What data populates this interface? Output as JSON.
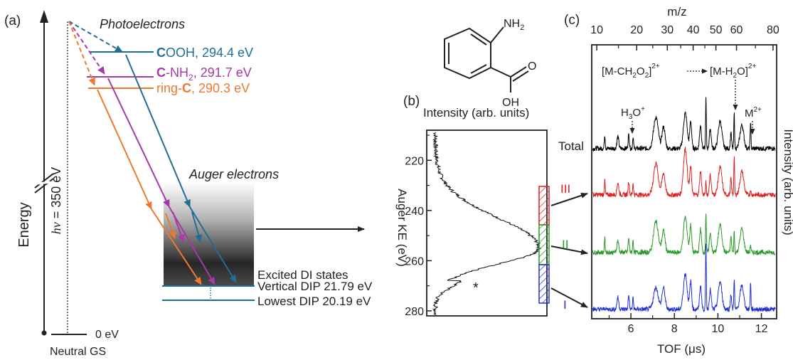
{
  "panel_a": {
    "label": "(a)",
    "energy_label": "Energy",
    "photon_label_italic": "hν",
    "photon_label_rest": " = 350 eV",
    "photoelectrons_label": "Photoelectrons",
    "auger_label": "Auger electrons",
    "ground_energy": "0 eV",
    "ground_label": "Neutral GS",
    "levels": [
      {
        "bold": "C",
        "rest": "OOH, 294.4 eV",
        "color": "#1f6e93"
      },
      {
        "bold": "C",
        "rest": "-NH",
        "sub": "2",
        "tail": ", 291.7 eV",
        "color": "#a53aa8"
      },
      {
        "prefix": "ring-",
        "bold": "C",
        "rest": ", 290.3 eV",
        "color": "#ef7a2e"
      }
    ],
    "excited_label": "Excited DI states",
    "vertical_dip": "Vertical DIP 21.79 eV",
    "lowest_dip": "Lowest DIP 20.19 eV"
  },
  "molecule": {
    "amine": "NH",
    "amine_sub": "2",
    "oxygen": "O",
    "hydroxyl": "OH"
  },
  "panel_b": {
    "label": "(b)",
    "top_label": "Intensity (arb. units)",
    "axis_label": "Auger KE (eV)",
    "ticks": [
      "220",
      "240",
      "260",
      "280"
    ],
    "marker": "*",
    "regions": [
      {
        "name": "III",
        "color": "#e02020"
      },
      {
        "name": "II",
        "color": "#2a9a2a"
      },
      {
        "name": "I",
        "color": "#2030d0"
      }
    ]
  },
  "panel_c": {
    "label": "(c)",
    "top_axis_label": "m/z",
    "top_ticks": [
      "10",
      "20",
      "30",
      "40",
      "50",
      "60",
      "80"
    ],
    "bottom_axis_label": "TOF (μs)",
    "bottom_ticks": [
      "6",
      "8",
      "10",
      "12"
    ],
    "right_axis_label": "Intensity (arb. units)",
    "traces": [
      {
        "name": "Total",
        "color": "#000000"
      },
      {
        "name": "III",
        "color": "#e02020"
      },
      {
        "name": "II",
        "color": "#2a9a2a"
      },
      {
        "name": "I",
        "color": "#2030d0"
      }
    ],
    "annotations": {
      "h3o": "H",
      "h3o_sub": "3",
      "h3o_tail": "O",
      "h3o_sup": "+",
      "mch2o2": "[M-CH",
      "mch2o2_sub": "2",
      "mch2o2_mid": "O",
      "mch2o2_sub2": "2",
      "mch2o2_tail": "]",
      "mch2o2_sup": "2+",
      "mh2o": "[M-H",
      "mh2o_sub": "2",
      "mh2o_tail": "O]",
      "mh2o_sup": "2+",
      "m2": "M",
      "m2_sup": "2+"
    }
  }
}
